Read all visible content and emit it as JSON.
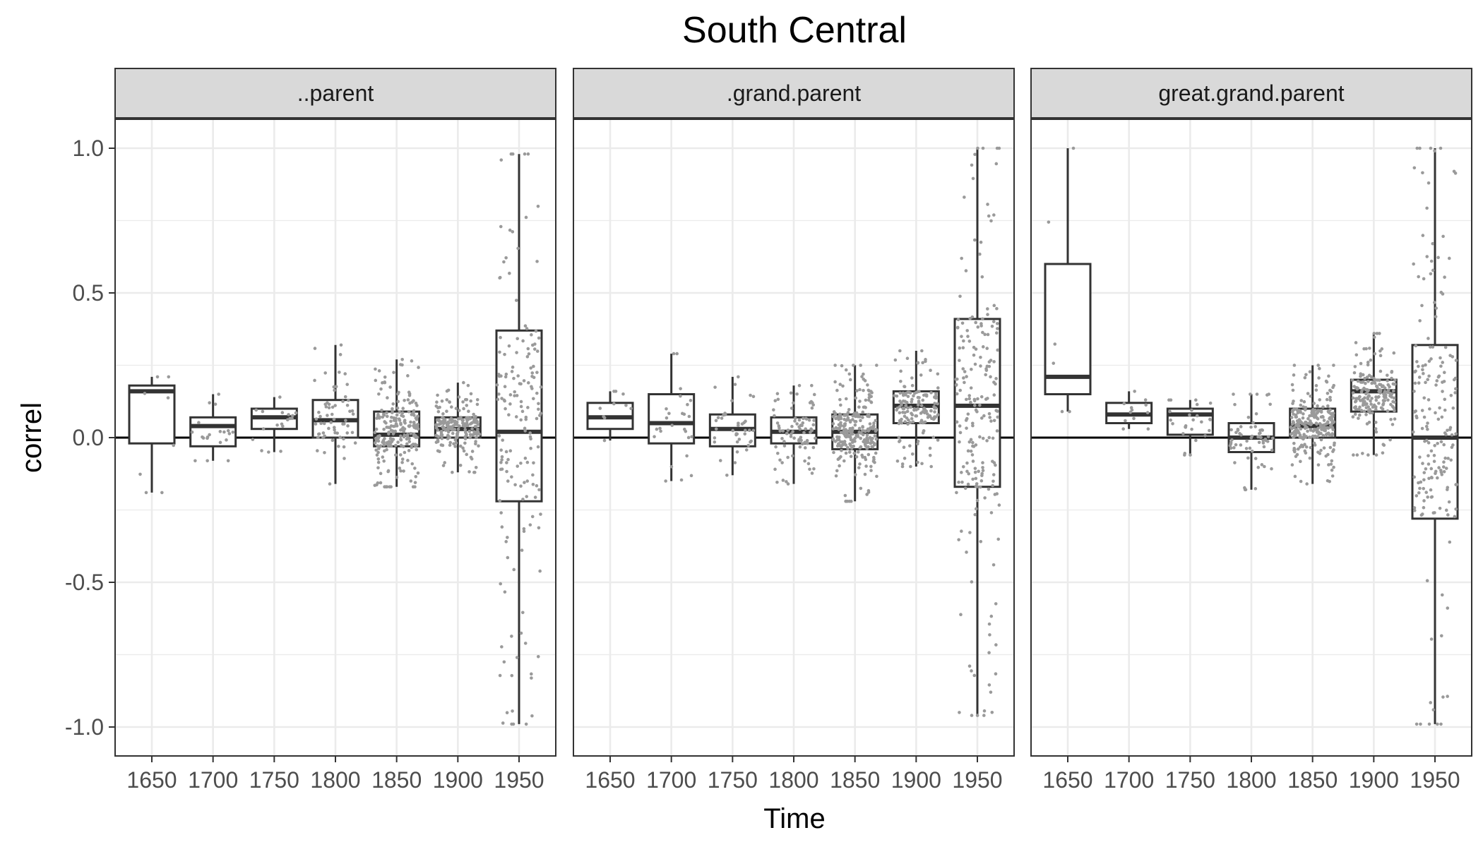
{
  "chart_data": {
    "type": "boxplot",
    "title": "South Central",
    "xlabel": "Time",
    "ylabel": "correl",
    "categories": [
      "1650",
      "1700",
      "1750",
      "1800",
      "1850",
      "1900",
      "1950"
    ],
    "ylim": [
      -1.1,
      1.1
    ],
    "yticks": [
      -1.0,
      -0.5,
      0.0,
      0.5,
      1.0
    ],
    "ytick_labels": [
      "-1.0",
      "-0.5",
      "0.0",
      "0.5",
      "1.0"
    ],
    "reference_line_y": 0,
    "grid": true,
    "facets": [
      {
        "label": "..parent",
        "boxes": [
          {
            "x": "1650",
            "min": -0.19,
            "q1": -0.02,
            "median": 0.16,
            "q3": 0.18,
            "max": 0.21,
            "n": 6
          },
          {
            "x": "1700",
            "min": -0.08,
            "q1": -0.03,
            "median": 0.04,
            "q3": 0.07,
            "max": 0.15,
            "n": 18
          },
          {
            "x": "1750",
            "min": -0.05,
            "q1": 0.03,
            "median": 0.07,
            "q3": 0.1,
            "max": 0.14,
            "n": 16
          },
          {
            "x": "1800",
            "min": -0.16,
            "q1": 0.0,
            "median": 0.06,
            "q3": 0.13,
            "max": 0.32,
            "n": 60
          },
          {
            "x": "1850",
            "min": -0.17,
            "q1": -0.03,
            "median": 0.01,
            "q3": 0.09,
            "max": 0.27,
            "n": 220
          },
          {
            "x": "1900",
            "min": -0.12,
            "q1": 0.0,
            "median": 0.03,
            "q3": 0.07,
            "max": 0.19,
            "n": 200
          },
          {
            "x": "1950",
            "min": -0.99,
            "q1": -0.22,
            "median": 0.02,
            "q3": 0.37,
            "max": 0.98,
            "n": 160
          }
        ]
      },
      {
        "label": ".grand.parent",
        "boxes": [
          {
            "x": "1650",
            "min": -0.01,
            "q1": 0.03,
            "median": 0.07,
            "q3": 0.12,
            "max": 0.16,
            "n": 8
          },
          {
            "x": "1700",
            "min": -0.15,
            "q1": -0.02,
            "median": 0.05,
            "q3": 0.15,
            "max": 0.29,
            "n": 24
          },
          {
            "x": "1750",
            "min": -0.13,
            "q1": -0.03,
            "median": 0.03,
            "q3": 0.08,
            "max": 0.21,
            "n": 36
          },
          {
            "x": "1800",
            "min": -0.16,
            "q1": -0.02,
            "median": 0.02,
            "q3": 0.07,
            "max": 0.18,
            "n": 80
          },
          {
            "x": "1850",
            "min": -0.22,
            "q1": -0.04,
            "median": 0.02,
            "q3": 0.08,
            "max": 0.25,
            "n": 260
          },
          {
            "x": "1900",
            "min": -0.1,
            "q1": 0.05,
            "median": 0.11,
            "q3": 0.16,
            "max": 0.3,
            "n": 150
          },
          {
            "x": "1950",
            "min": -0.96,
            "q1": -0.17,
            "median": 0.11,
            "q3": 0.41,
            "max": 1.0,
            "n": 200
          }
        ]
      },
      {
        "label": "great.grand.parent",
        "boxes": [
          {
            "x": "1650",
            "min": 0.09,
            "q1": 0.15,
            "median": 0.21,
            "q3": 0.6,
            "max": 1.0,
            "n": 4
          },
          {
            "x": "1700",
            "min": 0.03,
            "q1": 0.05,
            "median": 0.08,
            "q3": 0.12,
            "max": 0.16,
            "n": 10
          },
          {
            "x": "1750",
            "min": -0.06,
            "q1": 0.01,
            "median": 0.08,
            "q3": 0.1,
            "max": 0.13,
            "n": 24
          },
          {
            "x": "1800",
            "min": -0.18,
            "q1": -0.05,
            "median": 0.0,
            "q3": 0.05,
            "max": 0.15,
            "n": 60
          },
          {
            "x": "1850",
            "min": -0.16,
            "q1": 0.0,
            "median": 0.04,
            "q3": 0.1,
            "max": 0.25,
            "n": 260
          },
          {
            "x": "1900",
            "min": -0.06,
            "q1": 0.09,
            "median": 0.16,
            "q3": 0.2,
            "max": 0.36,
            "n": 180
          },
          {
            "x": "1950",
            "min": -0.99,
            "q1": -0.28,
            "median": 0.0,
            "q3": 0.32,
            "max": 1.0,
            "n": 180
          }
        ]
      }
    ],
    "colors": {
      "box_outline": "#333333",
      "points": "#9a9a9a",
      "strip_fill": "#d9d9d9",
      "grid": "#ebebeb",
      "reference_line": "#000000"
    }
  }
}
